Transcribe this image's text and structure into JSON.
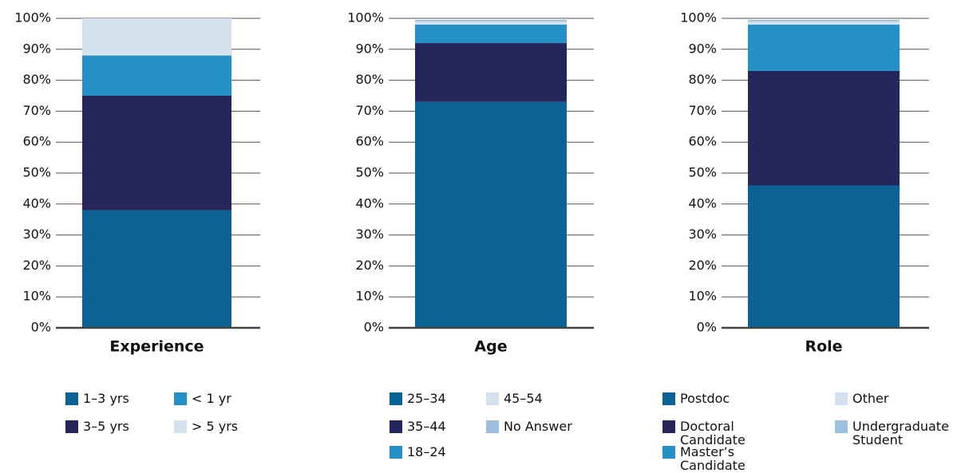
{
  "chart_data": [
    {
      "type": "bar",
      "stacked": true,
      "categories": [
        "Experience"
      ],
      "series": [
        {
          "name": "1–3 yrs",
          "color": "#0b6395",
          "values": [
            38
          ]
        },
        {
          "name": "3–5 yrs",
          "color": "#27265c",
          "values": [
            37
          ]
        },
        {
          "name": "< 1 yr",
          "color": "#2490c6",
          "values": [
            13
          ]
        },
        {
          "name": "> 5 yrs",
          "color": "#d4e1ee",
          "values": [
            12
          ]
        }
      ],
      "ylim": [
        0,
        100
      ],
      "yticks": [
        {
          "value": 0,
          "label": "0%"
        },
        {
          "value": 10,
          "label": "10%"
        },
        {
          "value": 20,
          "label": "20%"
        },
        {
          "value": 30,
          "label": "30%"
        },
        {
          "value": 40,
          "label": "40%"
        },
        {
          "value": 50,
          "label": "50%"
        },
        {
          "value": 60,
          "label": "60%"
        },
        {
          "value": 70,
          "label": "70%"
        },
        {
          "value": 80,
          "label": "80%"
        },
        {
          "value": 90,
          "label": "90%"
        },
        {
          "value": 100,
          "label": "100%"
        }
      ],
      "grid": true
    },
    {
      "type": "bar",
      "stacked": true,
      "categories": [
        "Age"
      ],
      "series": [
        {
          "name": "25–34",
          "color": "#0b6395",
          "values": [
            73
          ]
        },
        {
          "name": "35–44",
          "color": "#27265c",
          "values": [
            19
          ]
        },
        {
          "name": "18–24",
          "color": "#2490c6",
          "values": [
            6
          ]
        },
        {
          "name": "45–54",
          "color": "#d4e1ee",
          "values": [
            1
          ]
        },
        {
          "name": "No Answer",
          "color": "#9dbfe0",
          "values": [
            0.5
          ]
        }
      ],
      "ylim": [
        0,
        100
      ],
      "yticks": [
        {
          "value": 0,
          "label": "0%"
        },
        {
          "value": 10,
          "label": "10%"
        },
        {
          "value": 20,
          "label": "20%"
        },
        {
          "value": 30,
          "label": "30%"
        },
        {
          "value": 40,
          "label": "40%"
        },
        {
          "value": 50,
          "label": "50%"
        },
        {
          "value": 60,
          "label": "60%"
        },
        {
          "value": 70,
          "label": "70%"
        },
        {
          "value": 80,
          "label": "80%"
        },
        {
          "value": 90,
          "label": "90%"
        },
        {
          "value": 100,
          "label": "100%"
        }
      ],
      "grid": true
    },
    {
      "type": "bar",
      "stacked": true,
      "categories": [
        "Role"
      ],
      "series": [
        {
          "name": "Postdoc",
          "color": "#0b6395",
          "values": [
            46
          ]
        },
        {
          "name": "Doctoral Candidate",
          "color": "#27265c",
          "values": [
            37
          ]
        },
        {
          "name": "Master’s Candidate",
          "color": "#2490c6",
          "values": [
            15
          ]
        },
        {
          "name": "Other",
          "color": "#d4e1ee",
          "values": [
            1
          ]
        },
        {
          "name": "Undergraduate Student",
          "color": "#9dbfe0",
          "values": [
            0.5
          ]
        }
      ],
      "ylim": [
        0,
        100
      ],
      "yticks": [
        {
          "value": 0,
          "label": "0%"
        },
        {
          "value": 10,
          "label": "10%"
        },
        {
          "value": 20,
          "label": "20%"
        },
        {
          "value": 30,
          "label": "30%"
        },
        {
          "value": 40,
          "label": "40%"
        },
        {
          "value": 50,
          "label": "50%"
        },
        {
          "value": 60,
          "label": "60%"
        },
        {
          "value": 70,
          "label": "70%"
        },
        {
          "value": 80,
          "label": "80%"
        },
        {
          "value": 90,
          "label": "90%"
        },
        {
          "value": 100,
          "label": "100%"
        }
      ],
      "grid": true
    }
  ]
}
